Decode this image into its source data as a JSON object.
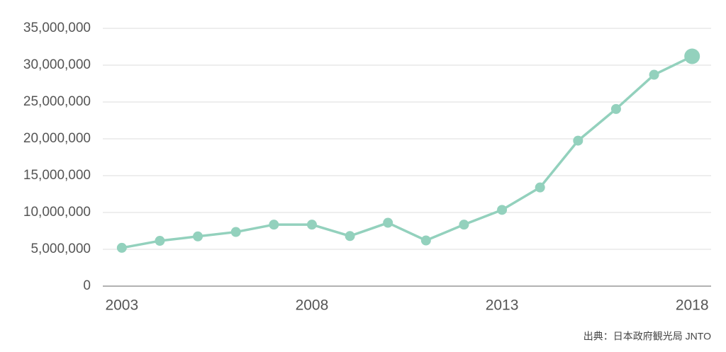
{
  "chart_data": {
    "type": "line",
    "source": "出典：日本政府観光局 JNTO",
    "x": [
      2003,
      2004,
      2005,
      2006,
      2007,
      2008,
      2009,
      2010,
      2011,
      2012,
      2013,
      2014,
      2015,
      2016,
      2017,
      2018
    ],
    "series": [
      {
        "color": "#93d1bd",
        "values": [
          5200000,
          6150000,
          6750000,
          7350000,
          8350000,
          8350000,
          6800000,
          8600000,
          6200000,
          8350000,
          10350000,
          13400000,
          19750000,
          24050000,
          28700000,
          31200000
        ]
      }
    ],
    "xlim": [
      2002.5,
      2018.5
    ],
    "xticks": [
      2003,
      2008,
      2013,
      2018
    ],
    "ylim": [
      0,
      35000000
    ],
    "yticks": [
      0,
      {
        "value": 5000000,
        "label": "5,000,000"
      },
      {
        "value": 10000000,
        "label": "10,000,000"
      },
      {
        "value": 15000000,
        "label": "15,000,000"
      },
      {
        "value": 20000000,
        "label": "20,000,000"
      },
      {
        "value": 25000000,
        "label": "25,000,000"
      },
      {
        "value": 30000000,
        "label": "30,000,000"
      },
      {
        "value": 35000000,
        "label": "35,000,000"
      }
    ],
    "grid": true
  }
}
